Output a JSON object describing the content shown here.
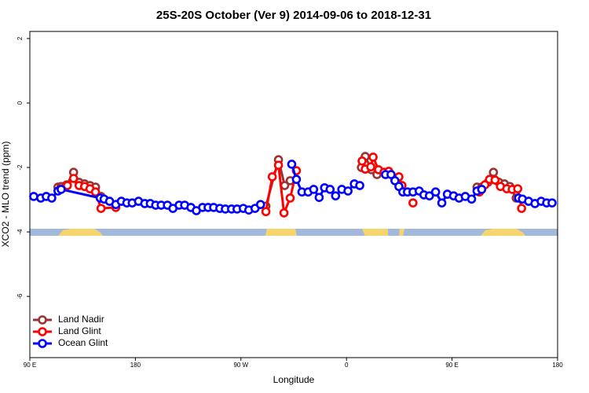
{
  "chart_data": {
    "type": "line",
    "title": "25S-20S October (Ver 9)   2014-09-06 to 2018-12-31",
    "x_label": "Longitude",
    "y_label": "XCO2 - MLO trend (ppm)",
    "xlim": [
      90,
      540
    ],
    "ylim": [
      -7.9,
      2.22
    ],
    "xticks": [
      {
        "value": 90,
        "label": "90 E"
      },
      180,
      {
        "value": 270,
        "label": "90 W"
      },
      {
        "value": 360,
        "label": "0"
      },
      {
        "value": 450,
        "label": "90 E"
      },
      {
        "value": 540,
        "label": "180"
      }
    ],
    "yticks": [
      -6,
      -4,
      -2,
      0,
      2
    ],
    "legend": "bottom-left",
    "series": [
      {
        "name": "Land Nadir",
        "color": "#993333",
        "x": [
          114,
          116.7,
          121.3,
          127.3,
          132,
          136.7,
          141.3,
          146,
          150.7,
          null,
          291.3,
          302,
          307.3,
          312,
          null,
          372.7,
          376,
          381.3,
          386,
          null,
          471.3,
          475.3,
          480.7,
          485.3,
          490,
          494.7,
          499.3,
          504.7
        ],
        "values": [
          -2.61,
          -2.59,
          -2.54,
          -2.15,
          -2.46,
          -2.51,
          -2.56,
          -2.61,
          -2.9,
          null,
          -3.2,
          -1.76,
          -2.56,
          -2.41,
          null,
          -2.0,
          -1.66,
          -2.07,
          -2.22,
          null,
          -2.61,
          -2.61,
          -2.46,
          -2.15,
          -2.46,
          -2.51,
          -2.59,
          -2.95
        ]
      },
      {
        "name": "Land Glint",
        "color": "#ff0000",
        "x": [
          116.7,
          122,
          127.3,
          132,
          136.7,
          141.3,
          146,
          150.7,
          163.3,
          null,
          291.3,
          296.7,
          302,
          306.7,
          312,
          317.3,
          null,
          373.3,
          376,
          380.7,
          382.7,
          387.3,
          392,
          396,
          401.3,
          404.7,
          407.3,
          null,
          416.7,
          null,
          473.3,
          478,
          482,
          486.7,
          491.3,
          496.7,
          501.3,
          506,
          509.3
        ],
        "values": [
          -2.66,
          -2.56,
          -2.34,
          -2.56,
          -2.59,
          -2.66,
          -2.76,
          -3.27,
          -3.24,
          null,
          -3.37,
          -2.29,
          -1.93,
          -3.41,
          -2.95,
          -2.1,
          null,
          -1.8,
          -2.05,
          -1.98,
          -1.68,
          -2.07,
          -2.15,
          -2.12,
          -2.37,
          -2.29,
          -2.56,
          null,
          -3.1,
          null,
          -2.76,
          -2.54,
          -2.37,
          -2.39,
          -2.59,
          -2.66,
          -2.68,
          -2.66,
          -3.27
        ]
      },
      {
        "name": "Ocean Glint",
        "color": "#0000ff",
        "x": [
          93.3,
          99.3,
          104,
          108.7,
          114,
          116.7,
          150,
          153.3,
          158,
          163.3,
          168,
          172.7,
          177.3,
          182.7,
          188,
          192.7,
          197.3,
          202,
          207.3,
          212,
          217.3,
          222,
          227.3,
          232,
          237.3,
          242,
          246.7,
          252,
          256.7,
          262,
          266.7,
          272,
          276.7,
          282,
          286.7,
          null,
          313.3,
          317.3,
          322,
          327.3,
          332,
          336.7,
          341.3,
          346,
          350.7,
          356,
          361.3,
          366.7,
          371.3,
          null,
          393.3,
          398,
          401.3,
          404.7,
          408,
          412,
          416.7,
          422,
          426,
          430.7,
          436,
          441.3,
          446,
          451.3,
          456,
          461.3,
          466.7,
          471.3,
          475.3,
          null,
          506.7,
          510,
          515.3,
          520.7,
          526,
          530.7,
          535.3
        ],
        "values": [
          -2.9,
          -2.95,
          -2.9,
          -2.95,
          -2.73,
          -2.68,
          -2.95,
          -2.98,
          -3.05,
          -3.15,
          -3.05,
          -3.1,
          -3.1,
          -3.05,
          -3.12,
          -3.12,
          -3.17,
          -3.17,
          -3.17,
          -3.27,
          -3.17,
          -3.17,
          -3.24,
          -3.34,
          -3.24,
          -3.24,
          -3.24,
          -3.27,
          -3.29,
          -3.29,
          -3.29,
          -3.27,
          -3.32,
          -3.27,
          -3.15,
          null,
          -1.9,
          -2.37,
          -2.76,
          -2.76,
          -2.68,
          -2.93,
          -2.63,
          -2.68,
          -2.88,
          -2.68,
          -2.73,
          -2.51,
          -2.56,
          null,
          -2.22,
          -2.22,
          -2.41,
          -2.59,
          -2.76,
          -2.76,
          -2.76,
          -2.73,
          -2.85,
          -2.88,
          -2.76,
          -3.1,
          -2.83,
          -2.88,
          -2.95,
          -2.9,
          -2.98,
          -2.73,
          -2.68,
          null,
          -2.95,
          -2.98,
          -3.05,
          -3.12,
          -3.05,
          -3.1,
          -3.1
        ]
      }
    ]
  }
}
